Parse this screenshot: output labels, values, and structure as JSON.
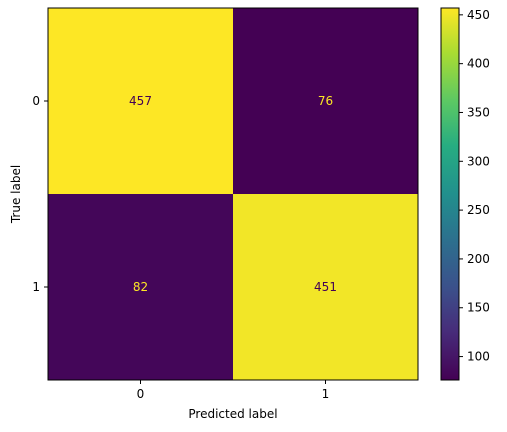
{
  "chart_data": {
    "type": "heatmap",
    "x_tick_labels": [
      "0",
      "1"
    ],
    "y_tick_labels": [
      "0",
      "1"
    ],
    "xlabel": "Predicted label",
    "ylabel": "True label",
    "matrix": [
      [
        457,
        76
      ],
      [
        82,
        451
      ]
    ],
    "cell_text_colors": {
      "high_value": "#440154",
      "low_value": "#fde725"
    },
    "colormap": "viridis",
    "colorbar": {
      "min": 76,
      "max": 457,
      "ticks": [
        100,
        150,
        200,
        250,
        300,
        350,
        400,
        450
      ]
    }
  }
}
